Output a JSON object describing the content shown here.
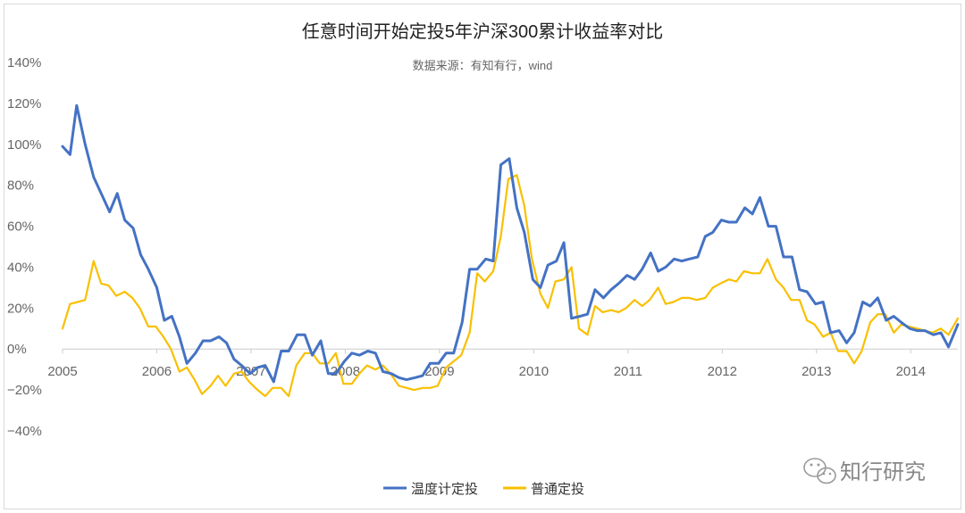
{
  "chart_data": {
    "type": "line",
    "title": "任意时间开始定投5年沪深300累计收益率对比",
    "subtitle": "数据来源：有知有行，wind",
    "xlabel": "",
    "ylabel": "",
    "x_ticks": [
      "2005",
      "2006",
      "2007",
      "2008",
      "2009",
      "2010",
      "2011",
      "2012",
      "2013",
      "2014"
    ],
    "xlim": [
      2005.0,
      2014.5
    ],
    "y_ticks": [
      "140%",
      "120%",
      "100%",
      "80%",
      "60%",
      "40%",
      "20%",
      "0%",
      "−20%",
      "−40%"
    ],
    "ylim": [
      -40,
      140
    ],
    "grid": false,
    "legend_position": "bottom-center",
    "watermark": "知行研究",
    "series": [
      {
        "name": "温度计定投",
        "color": "#4472c4",
        "points": [
          [
            2005.0,
            99
          ],
          [
            2005.08,
            95
          ],
          [
            2005.15,
            119
          ],
          [
            2005.24,
            100
          ],
          [
            2005.33,
            84
          ],
          [
            2005.42,
            75
          ],
          [
            2005.5,
            67
          ],
          [
            2005.58,
            76
          ],
          [
            2005.66,
            63
          ],
          [
            2005.75,
            59
          ],
          [
            2005.83,
            46
          ],
          [
            2005.91,
            39
          ],
          [
            2006.0,
            30
          ],
          [
            2006.08,
            14
          ],
          [
            2006.16,
            16
          ],
          [
            2006.24,
            6
          ],
          [
            2006.32,
            -7
          ],
          [
            2006.41,
            -2
          ],
          [
            2006.49,
            4
          ],
          [
            2006.57,
            4
          ],
          [
            2006.66,
            6
          ],
          [
            2006.74,
            3
          ],
          [
            2006.82,
            -5
          ],
          [
            2006.9,
            -8
          ],
          [
            2006.99,
            -12
          ],
          [
            2007.07,
            -9
          ],
          [
            2007.15,
            -8
          ],
          [
            2007.24,
            -16
          ],
          [
            2007.32,
            -1
          ],
          [
            2007.4,
            -1
          ],
          [
            2007.49,
            7
          ],
          [
            2007.57,
            7
          ],
          [
            2007.65,
            -3
          ],
          [
            2007.74,
            4
          ],
          [
            2007.82,
            -12
          ],
          [
            2007.9,
            -12
          ],
          [
            2007.99,
            -6
          ],
          [
            2008.07,
            -2
          ],
          [
            2008.15,
            -3
          ],
          [
            2008.24,
            -1
          ],
          [
            2008.32,
            -2
          ],
          [
            2008.4,
            -11
          ],
          [
            2008.49,
            -12
          ],
          [
            2008.57,
            -14
          ],
          [
            2008.65,
            -15
          ],
          [
            2008.74,
            -14
          ],
          [
            2008.82,
            -13
          ],
          [
            2008.9,
            -7
          ],
          [
            2008.99,
            -7
          ],
          [
            2009.07,
            -2
          ],
          [
            2009.15,
            -2
          ],
          [
            2009.24,
            13
          ],
          [
            2009.32,
            39
          ],
          [
            2009.4,
            39
          ],
          [
            2009.49,
            44
          ],
          [
            2009.57,
            43
          ],
          [
            2009.65,
            90
          ],
          [
            2009.74,
            93
          ],
          [
            2009.82,
            69
          ],
          [
            2009.9,
            57
          ],
          [
            2009.99,
            34
          ],
          [
            2010.07,
            30
          ],
          [
            2010.15,
            41
          ],
          [
            2010.24,
            43
          ],
          [
            2010.32,
            52
          ],
          [
            2010.4,
            15
          ],
          [
            2010.49,
            16
          ],
          [
            2010.57,
            17
          ],
          [
            2010.65,
            29
          ],
          [
            2010.74,
            25
          ],
          [
            2010.82,
            29
          ],
          [
            2010.9,
            32
          ],
          [
            2010.99,
            36
          ],
          [
            2011.07,
            34
          ],
          [
            2011.15,
            39
          ],
          [
            2011.24,
            47
          ],
          [
            2011.32,
            38
          ],
          [
            2011.4,
            40
          ],
          [
            2011.49,
            44
          ],
          [
            2011.57,
            43
          ],
          [
            2011.65,
            44
          ],
          [
            2011.74,
            45
          ],
          [
            2011.82,
            55
          ],
          [
            2011.9,
            57
          ],
          [
            2011.99,
            63
          ],
          [
            2012.07,
            62
          ],
          [
            2012.15,
            62
          ],
          [
            2012.24,
            69
          ],
          [
            2012.32,
            66
          ],
          [
            2012.4,
            74
          ],
          [
            2012.49,
            60
          ],
          [
            2012.57,
            60
          ],
          [
            2012.65,
            45
          ],
          [
            2012.74,
            45
          ],
          [
            2012.82,
            29
          ],
          [
            2012.9,
            28
          ],
          [
            2012.99,
            22
          ],
          [
            2013.07,
            23
          ],
          [
            2013.15,
            8
          ],
          [
            2013.24,
            9
          ],
          [
            2013.32,
            3
          ],
          [
            2013.4,
            8
          ],
          [
            2013.49,
            23
          ],
          [
            2013.57,
            21
          ],
          [
            2013.65,
            25
          ],
          [
            2013.74,
            14
          ],
          [
            2013.82,
            16
          ],
          [
            2013.9,
            13
          ],
          [
            2013.99,
            10
          ],
          [
            2014.07,
            9
          ],
          [
            2014.15,
            9
          ],
          [
            2014.24,
            7
          ],
          [
            2014.32,
            8
          ],
          [
            2014.4,
            1
          ],
          [
            2014.5,
            12
          ]
        ]
      },
      {
        "name": "普通定投",
        "color": "#f9c000",
        "points": [
          [
            2005.0,
            10
          ],
          [
            2005.08,
            22
          ],
          [
            2005.16,
            23
          ],
          [
            2005.24,
            24
          ],
          [
            2005.33,
            43
          ],
          [
            2005.41,
            32
          ],
          [
            2005.49,
            31
          ],
          [
            2005.57,
            26
          ],
          [
            2005.66,
            28
          ],
          [
            2005.74,
            25
          ],
          [
            2005.82,
            20
          ],
          [
            2005.91,
            11
          ],
          [
            2005.99,
            11
          ],
          [
            2006.07,
            6
          ],
          [
            2006.15,
            0
          ],
          [
            2006.24,
            -11
          ],
          [
            2006.32,
            -9
          ],
          [
            2006.4,
            -15
          ],
          [
            2006.48,
            -22
          ],
          [
            2006.57,
            -18
          ],
          [
            2006.65,
            -13
          ],
          [
            2006.73,
            -18
          ],
          [
            2006.82,
            -12
          ],
          [
            2006.9,
            -11
          ],
          [
            2006.98,
            -16
          ],
          [
            2007.07,
            -20
          ],
          [
            2007.15,
            -23
          ],
          [
            2007.23,
            -19
          ],
          [
            2007.32,
            -19
          ],
          [
            2007.4,
            -23
          ],
          [
            2007.48,
            -8
          ],
          [
            2007.57,
            -2
          ],
          [
            2007.65,
            -2
          ],
          [
            2007.73,
            -7
          ],
          [
            2007.82,
            -7
          ],
          [
            2007.9,
            -2
          ],
          [
            2007.98,
            -17
          ],
          [
            2008.07,
            -17
          ],
          [
            2008.15,
            -12
          ],
          [
            2008.23,
            -8
          ],
          [
            2008.32,
            -10
          ],
          [
            2008.4,
            -8
          ],
          [
            2008.48,
            -12
          ],
          [
            2008.57,
            -18
          ],
          [
            2008.65,
            -19
          ],
          [
            2008.73,
            -20
          ],
          [
            2008.82,
            -19
          ],
          [
            2008.9,
            -19
          ],
          [
            2008.98,
            -18
          ],
          [
            2009.07,
            -9
          ],
          [
            2009.15,
            -6
          ],
          [
            2009.23,
            -3
          ],
          [
            2009.32,
            8
          ],
          [
            2009.4,
            37
          ],
          [
            2009.48,
            33
          ],
          [
            2009.57,
            38
          ],
          [
            2009.65,
            55
          ],
          [
            2009.73,
            83
          ],
          [
            2009.82,
            85
          ],
          [
            2009.9,
            70
          ],
          [
            2009.98,
            44
          ],
          [
            2010.07,
            27
          ],
          [
            2010.15,
            20
          ],
          [
            2010.23,
            33
          ],
          [
            2010.32,
            34
          ],
          [
            2010.4,
            40
          ],
          [
            2010.48,
            10
          ],
          [
            2010.57,
            7
          ],
          [
            2010.65,
            21
          ],
          [
            2010.73,
            18
          ],
          [
            2010.82,
            19
          ],
          [
            2010.9,
            18
          ],
          [
            2010.98,
            20
          ],
          [
            2011.07,
            24
          ],
          [
            2011.15,
            21
          ],
          [
            2011.23,
            24
          ],
          [
            2011.32,
            30
          ],
          [
            2011.4,
            22
          ],
          [
            2011.48,
            23
          ],
          [
            2011.57,
            25
          ],
          [
            2011.65,
            25
          ],
          [
            2011.73,
            24
          ],
          [
            2011.82,
            25
          ],
          [
            2011.9,
            30
          ],
          [
            2011.98,
            32
          ],
          [
            2012.07,
            34
          ],
          [
            2012.15,
            33
          ],
          [
            2012.23,
            38
          ],
          [
            2012.32,
            37
          ],
          [
            2012.4,
            37
          ],
          [
            2012.48,
            44
          ],
          [
            2012.57,
            34
          ],
          [
            2012.65,
            30
          ],
          [
            2012.73,
            24
          ],
          [
            2012.82,
            24
          ],
          [
            2012.9,
            14
          ],
          [
            2012.98,
            12
          ],
          [
            2013.07,
            6
          ],
          [
            2013.15,
            8
          ],
          [
            2013.23,
            -1
          ],
          [
            2013.32,
            -1
          ],
          [
            2013.4,
            -7
          ],
          [
            2013.48,
            -1
          ],
          [
            2013.57,
            13
          ],
          [
            2013.65,
            17
          ],
          [
            2013.73,
            17
          ],
          [
            2013.82,
            8
          ],
          [
            2013.9,
            12
          ],
          [
            2013.98,
            11
          ],
          [
            2014.07,
            10
          ],
          [
            2014.15,
            9
          ],
          [
            2014.23,
            8
          ],
          [
            2014.32,
            10
          ],
          [
            2014.4,
            7
          ],
          [
            2014.5,
            15
          ]
        ]
      }
    ]
  }
}
